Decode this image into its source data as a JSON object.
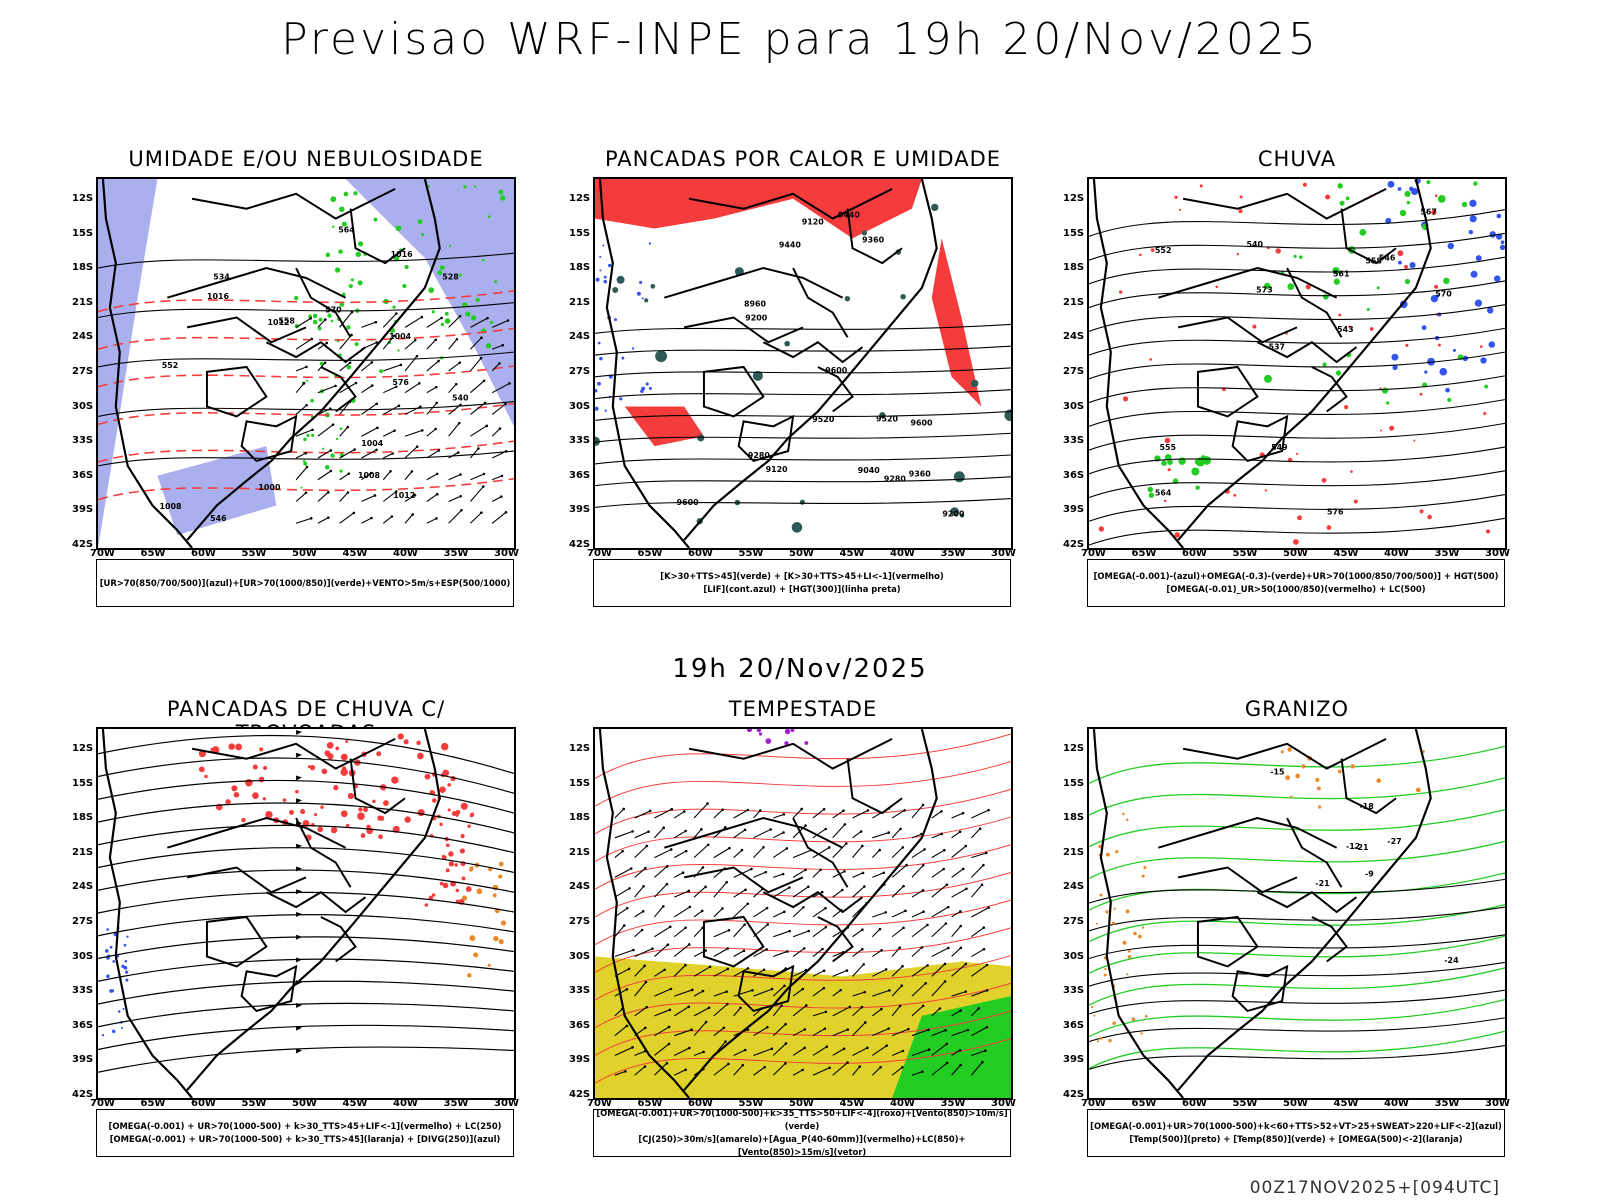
{
  "header": {
    "main_title": "Previsao WRF-INPE  para 19h 20/Nov/2025",
    "mid_title": "19h 20/Nov/2025",
    "footer": "00Z17NOV2025+[094UTC]"
  },
  "axes": {
    "lat_labels": [
      "12S",
      "15S",
      "18S",
      "21S",
      "24S",
      "27S",
      "30S",
      "33S",
      "36S",
      "39S",
      "42S"
    ],
    "lon_labels": [
      "70W",
      "65W",
      "60W",
      "55W",
      "50W",
      "45W",
      "40W",
      "35W",
      "30W"
    ]
  },
  "panels": [
    {
      "id": "umidade",
      "title": "UMIDADE E/OU NEBULOSIDADE",
      "legend": [
        "[UR>70(850/700/500)](azul)+[UR>70(1000/850)](verde)+VENTO>5m/s+ESP(500/1000)"
      ],
      "labels": [
        "1004",
        "1004",
        "1008",
        "1012",
        "1016",
        "1000",
        "1008",
        "1012",
        "1016",
        "576",
        "570",
        "564",
        "558",
        "552",
        "546",
        "540",
        "534",
        "528"
      ]
    },
    {
      "id": "pancadas-calor",
      "title": "PANCADAS POR CALOR E UMIDADE",
      "legend": [
        "[K>30+TTS>45](verde) + [K>30+TTS>45+LI<-1](vermelho)",
        "[LIF](cont.azul) + [HGT(300)](linha preta)"
      ],
      "labels": [
        "9600",
        "9600",
        "9600",
        "9520",
        "9440",
        "9440",
        "9360",
        "9360",
        "9280",
        "9280",
        "9200",
        "9200",
        "9120",
        "9120",
        "9040",
        "8960",
        "9520"
      ]
    },
    {
      "id": "chuva",
      "title": "CHUVA",
      "legend": [
        "[OMEGA(-0.001)-(azul)+OMEGA(-0.3)-(verde)+UR>70(1000/850/700/500)] + HGT(500)",
        "[OMEGA(-0.01)_UR>50(1000/850)(vermelho) + LC(500)"
      ],
      "labels": [
        "576",
        "573",
        "570",
        "567",
        "564",
        "561",
        "558",
        "555",
        "552",
        "549",
        "546",
        "543",
        "540",
        "537"
      ]
    },
    {
      "id": "trovoadas",
      "title": "PANCADAS DE CHUVA C/ TROVOADAS",
      "legend": [
        "[OMEGA(-0.001) + UR>70(1000-500) + k>30_TTS>45+LIF<-1](vermelho) + LC(250)",
        "[OMEGA(-0.001) + UR>70(1000-500) + k>30_TTS>45](laranja) + [DIVG(250)](azul)"
      ],
      "labels": []
    },
    {
      "id": "tempestade",
      "title": "TEMPESTADE",
      "legend": [
        "[OMEGA(-0.001)+UR>70(1000-500)+k>35_TTS>50+LIF<-4](roxo)+[Vento(850)>10m/s](verde)",
        "[CJ(250)>30m/s](amarelo)+[Agua_P(40-60mm)](vermelho)+LC(850)+[Vento(850)>15m/s](vetor)"
      ],
      "labels": []
    },
    {
      "id": "granizo",
      "title": "GRANIZO",
      "legend": [
        "[OMEGA(-0.001)+UR>70(1000-500)+k<60+TTS>52+VT>25+SWEAT>220+LIF<-2](azul)",
        "[Temp(500)](preto) + [Temp(850)](verde) + [OMEGA(500)<-2](laranja)"
      ],
      "labels": [
        "-9",
        "-12",
        "-15",
        "-18",
        "-21",
        "-24",
        "-27",
        "-21"
      ]
    }
  ],
  "colors": {
    "black": "#000000",
    "red": "#f53c3c",
    "green": "#22cc22",
    "blue": "#3355ee",
    "lavender": "#aab0ee",
    "darkteal": "#2d5a55",
    "yellow": "#e0d22a",
    "orange": "#e88a2a",
    "purple": "#a020d0"
  }
}
